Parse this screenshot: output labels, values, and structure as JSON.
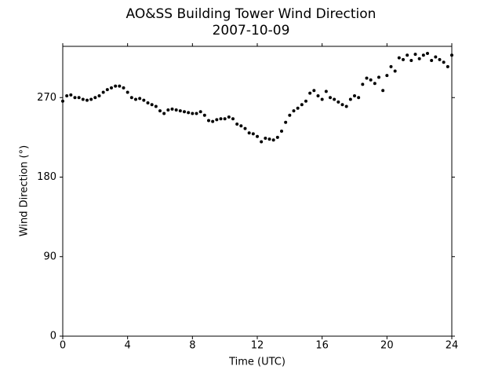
{
  "chart_data": {
    "type": "scatter",
    "title": "AO&SS Building Tower Wind Direction",
    "subtitle": "2007-10-09",
    "x_label": "Time (UTC)",
    "y_label": "Wind Direction (°)",
    "color": "#000000",
    "xlim": [
      0,
      24
    ],
    "xticks": [
      0,
      4,
      8,
      12,
      16,
      20,
      24
    ],
    "ylim": [
      0,
      328
    ],
    "yticks": [
      0,
      90,
      180,
      270
    ],
    "x": [
      0,
      0.25,
      0.5,
      0.75,
      1,
      1.25,
      1.5,
      1.75,
      2,
      2.25,
      2.5,
      2.75,
      3,
      3.25,
      3.5,
      3.75,
      4,
      4.25,
      4.5,
      4.75,
      5,
      5.25,
      5.5,
      5.75,
      6,
      6.25,
      6.5,
      6.75,
      7,
      7.25,
      7.5,
      7.75,
      8,
      8.25,
      8.5,
      8.75,
      9,
      9.25,
      9.5,
      9.75,
      10,
      10.25,
      10.5,
      10.75,
      11,
      11.25,
      11.5,
      11.75,
      12,
      12.25,
      12.5,
      12.75,
      13,
      13.25,
      13.5,
      13.75,
      14,
      14.25,
      14.5,
      14.75,
      15,
      15.25,
      15.5,
      15.75,
      16,
      16.25,
      16.5,
      16.75,
      17,
      17.25,
      17.5,
      17.75,
      18,
      18.25,
      18.5,
      18.75,
      19,
      19.25,
      19.5,
      19.75,
      20,
      20.25,
      20.5,
      20.75,
      21,
      21.25,
      21.5,
      21.75,
      22,
      22.25,
      22.5,
      22.75,
      23,
      23.25,
      23.5,
      23.75,
      24
    ],
    "values": [
      266,
      272,
      273,
      270,
      270,
      268,
      267,
      268,
      270,
      272,
      276,
      279,
      281,
      283,
      283,
      281,
      276,
      270,
      268,
      269,
      267,
      264,
      262,
      260,
      255,
      252,
      256,
      257,
      256,
      255,
      254,
      253,
      252,
      252,
      254,
      250,
      244,
      243,
      245,
      246,
      246,
      248,
      246,
      240,
      238,
      235,
      230,
      229,
      226,
      220,
      224,
      223,
      222,
      225,
      232,
      242,
      250,
      255,
      258,
      262,
      266,
      275,
      278,
      272,
      268,
      277,
      270,
      268,
      265,
      262,
      260,
      268,
      272,
      270,
      285,
      292,
      290,
      286,
      293,
      278,
      295,
      305,
      300,
      315,
      313,
      318,
      312,
      319,
      314,
      318,
      320,
      312,
      316,
      313,
      310,
      305,
      318
    ]
  }
}
